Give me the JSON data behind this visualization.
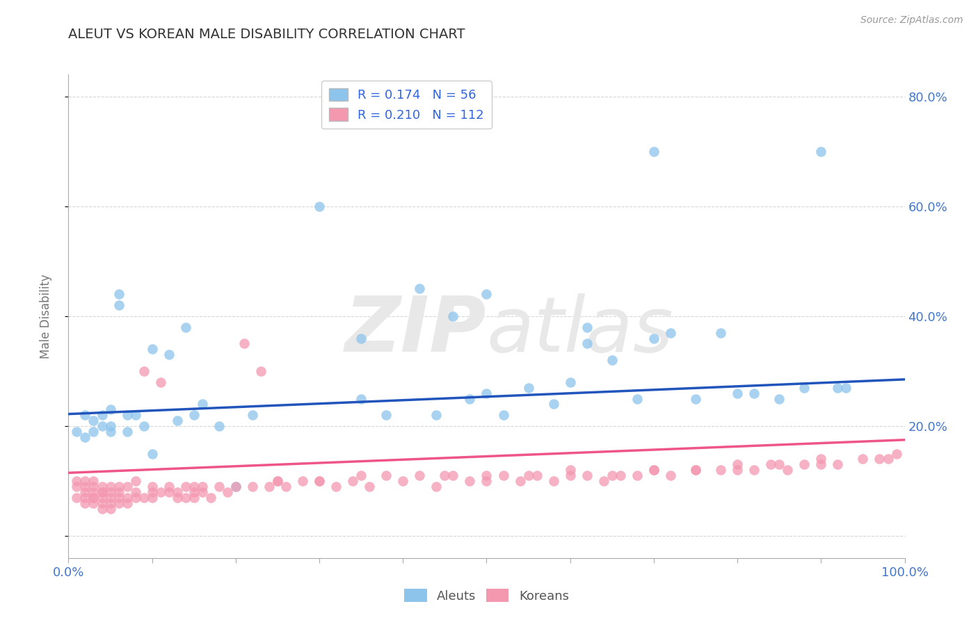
{
  "title": "ALEUT VS KOREAN MALE DISABILITY CORRELATION CHART",
  "source": "Source: ZipAtlas.com",
  "ylabel": "Male Disability",
  "xlim": [
    0.0,
    1.0
  ],
  "ylim": [
    -0.04,
    0.84
  ],
  "yticks": [
    0.0,
    0.2,
    0.4,
    0.6,
    0.8
  ],
  "ytick_labels": [
    "",
    "20.0%",
    "40.0%",
    "60.0%",
    "80.0%"
  ],
  "xticks": [
    0.0,
    0.1,
    0.2,
    0.3,
    0.4,
    0.5,
    0.6,
    0.7,
    0.8,
    0.9,
    1.0
  ],
  "xtick_labels": [
    "0.0%",
    "",
    "",
    "",
    "",
    "",
    "",
    "",
    "",
    "",
    "100.0%"
  ],
  "aleut_color": "#8CC4EC",
  "korean_color": "#F498B0",
  "aleut_line_color": "#2255BB",
  "korean_line_color": "#EE5588",
  "legend_text_color": "#3366DD",
  "aleut_R": 0.174,
  "aleut_N": 56,
  "korean_R": 0.21,
  "korean_N": 112,
  "aleut_x": [
    0.01,
    0.02,
    0.02,
    0.03,
    0.03,
    0.04,
    0.04,
    0.05,
    0.05,
    0.05,
    0.06,
    0.06,
    0.07,
    0.07,
    0.08,
    0.09,
    0.1,
    0.1,
    0.12,
    0.13,
    0.14,
    0.15,
    0.16,
    0.18,
    0.2,
    0.22,
    0.3,
    0.35,
    0.38,
    0.42,
    0.44,
    0.46,
    0.48,
    0.5,
    0.52,
    0.55,
    0.58,
    0.6,
    0.62,
    0.65,
    0.68,
    0.7,
    0.72,
    0.75,
    0.78,
    0.8,
    0.82,
    0.85,
    0.88,
    0.9,
    0.92,
    0.93,
    0.5,
    0.35,
    0.62,
    0.7
  ],
  "aleut_y": [
    0.19,
    0.22,
    0.18,
    0.21,
    0.19,
    0.2,
    0.22,
    0.23,
    0.2,
    0.19,
    0.44,
    0.42,
    0.22,
    0.19,
    0.22,
    0.2,
    0.15,
    0.34,
    0.33,
    0.21,
    0.38,
    0.22,
    0.24,
    0.2,
    0.09,
    0.22,
    0.6,
    0.25,
    0.22,
    0.45,
    0.22,
    0.4,
    0.25,
    0.26,
    0.22,
    0.27,
    0.24,
    0.28,
    0.35,
    0.32,
    0.25,
    0.36,
    0.37,
    0.25,
    0.37,
    0.26,
    0.26,
    0.25,
    0.27,
    0.7,
    0.27,
    0.27,
    0.44,
    0.36,
    0.38,
    0.7
  ],
  "korean_x": [
    0.01,
    0.01,
    0.01,
    0.02,
    0.02,
    0.02,
    0.02,
    0.02,
    0.03,
    0.03,
    0.03,
    0.03,
    0.03,
    0.03,
    0.04,
    0.04,
    0.04,
    0.04,
    0.04,
    0.04,
    0.05,
    0.05,
    0.05,
    0.05,
    0.05,
    0.06,
    0.06,
    0.06,
    0.06,
    0.07,
    0.07,
    0.07,
    0.08,
    0.08,
    0.08,
    0.09,
    0.09,
    0.1,
    0.1,
    0.1,
    0.11,
    0.11,
    0.12,
    0.12,
    0.13,
    0.13,
    0.14,
    0.14,
    0.15,
    0.15,
    0.16,
    0.16,
    0.17,
    0.18,
    0.19,
    0.2,
    0.21,
    0.22,
    0.23,
    0.24,
    0.25,
    0.26,
    0.28,
    0.3,
    0.32,
    0.34,
    0.36,
    0.38,
    0.4,
    0.42,
    0.44,
    0.46,
    0.48,
    0.5,
    0.52,
    0.54,
    0.56,
    0.58,
    0.6,
    0.62,
    0.64,
    0.66,
    0.68,
    0.7,
    0.72,
    0.75,
    0.78,
    0.8,
    0.82,
    0.84,
    0.86,
    0.88,
    0.9,
    0.92,
    0.95,
    0.97,
    0.98,
    0.99,
    0.3,
    0.45,
    0.55,
    0.65,
    0.75,
    0.85,
    0.15,
    0.25,
    0.35,
    0.5,
    0.6,
    0.7,
    0.8,
    0.9
  ],
  "korean_y": [
    0.09,
    0.07,
    0.1,
    0.08,
    0.06,
    0.09,
    0.07,
    0.1,
    0.07,
    0.09,
    0.06,
    0.08,
    0.1,
    0.07,
    0.08,
    0.06,
    0.09,
    0.07,
    0.05,
    0.08,
    0.07,
    0.09,
    0.06,
    0.08,
    0.05,
    0.07,
    0.06,
    0.09,
    0.08,
    0.07,
    0.06,
    0.09,
    0.08,
    0.07,
    0.1,
    0.07,
    0.3,
    0.08,
    0.07,
    0.09,
    0.28,
    0.08,
    0.08,
    0.09,
    0.07,
    0.08,
    0.07,
    0.09,
    0.08,
    0.07,
    0.09,
    0.08,
    0.07,
    0.09,
    0.08,
    0.09,
    0.35,
    0.09,
    0.3,
    0.09,
    0.1,
    0.09,
    0.1,
    0.1,
    0.09,
    0.1,
    0.09,
    0.11,
    0.1,
    0.11,
    0.09,
    0.11,
    0.1,
    0.1,
    0.11,
    0.1,
    0.11,
    0.1,
    0.11,
    0.11,
    0.1,
    0.11,
    0.11,
    0.12,
    0.11,
    0.12,
    0.12,
    0.12,
    0.12,
    0.13,
    0.12,
    0.13,
    0.13,
    0.13,
    0.14,
    0.14,
    0.14,
    0.15,
    0.1,
    0.11,
    0.11,
    0.11,
    0.12,
    0.13,
    0.09,
    0.1,
    0.11,
    0.11,
    0.12,
    0.12,
    0.13,
    0.14
  ],
  "background_color": "#FFFFFF",
  "grid_color": "#CCCCCC",
  "title_color": "#333333",
  "axis_label_color": "#777777",
  "tick_color": "#4477CC",
  "watermark_color": "#E8E8E8",
  "aleut_line_y0": 0.222,
  "aleut_line_y1": 0.285,
  "korean_line_y0": 0.115,
  "korean_line_y1": 0.175
}
